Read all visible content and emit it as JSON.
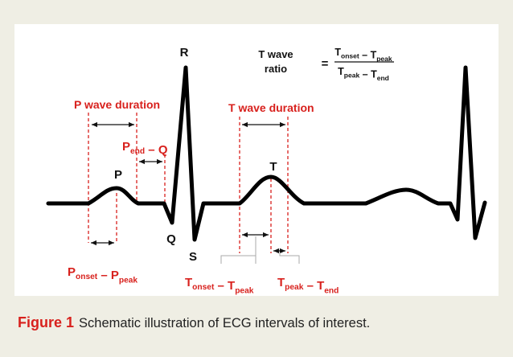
{
  "labels": {
    "r": "R",
    "p": "P",
    "q": "Q",
    "s": "S",
    "t": "T",
    "p_wave_duration": "P wave duration",
    "t_wave_duration": "T wave duration"
  },
  "compound": {
    "p_end_q": [
      {
        "text": "P",
        "sub": "end"
      },
      {
        "text": " – Q"
      }
    ],
    "p_onset_p_peak": [
      {
        "text": "P",
        "sub": "onset"
      },
      {
        "text": " – P",
        "sub": "peak"
      }
    ],
    "t_onset_t_peak": [
      {
        "text": "T",
        "sub": "onset"
      },
      {
        "text": " – T",
        "sub": "peak"
      }
    ],
    "t_peak_t_end": [
      {
        "text": "T",
        "sub": "peak"
      },
      {
        "text": " – T",
        "sub": "end"
      }
    ]
  },
  "formula": {
    "lhs_line1": "T wave",
    "lhs_line2": "ratio",
    "equals": "=",
    "numerator": [
      {
        "text": "T",
        "sub": "onset"
      },
      {
        "text": " – T",
        "sub": "peak"
      }
    ],
    "denominator": [
      {
        "text": "T",
        "sub": "peak"
      },
      {
        "text": " – T",
        "sub": "end"
      }
    ]
  },
  "caption": {
    "label": "Figure 1",
    "text": "Schematic illustration of ECG intervals of interest."
  }
}
